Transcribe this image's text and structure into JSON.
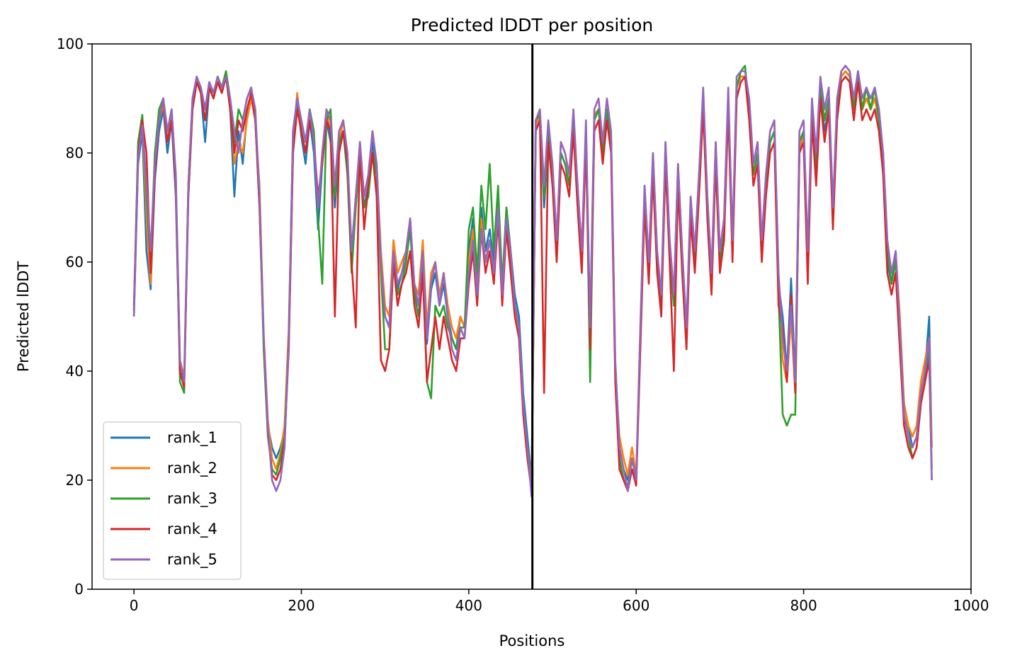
{
  "chart_data": {
    "type": "line",
    "title": "Predicted lDDT per position",
    "xlabel": "Positions",
    "ylabel": "Predicted lDDT",
    "xlim": [
      -50,
      1000
    ],
    "ylim": [
      0,
      100
    ],
    "xticks": [
      0,
      200,
      400,
      600,
      800,
      1000
    ],
    "yticks": [
      0,
      20,
      40,
      60,
      80,
      100
    ],
    "grid": false,
    "legend_position": "lower-left",
    "vline_x": 476,
    "x": [
      0,
      5,
      10,
      15,
      20,
      25,
      30,
      35,
      40,
      45,
      50,
      55,
      60,
      65,
      70,
      75,
      80,
      85,
      90,
      95,
      100,
      105,
      110,
      115,
      120,
      125,
      130,
      135,
      140,
      145,
      150,
      155,
      160,
      165,
      170,
      175,
      180,
      185,
      190,
      195,
      200,
      205,
      210,
      215,
      220,
      225,
      230,
      235,
      240,
      245,
      250,
      255,
      260,
      265,
      270,
      275,
      280,
      285,
      290,
      295,
      300,
      305,
      310,
      315,
      320,
      325,
      330,
      335,
      340,
      345,
      350,
      355,
      360,
      365,
      370,
      375,
      380,
      385,
      390,
      395,
      400,
      405,
      410,
      415,
      420,
      425,
      430,
      435,
      440,
      445,
      450,
      455,
      460,
      465,
      470,
      475,
      480,
      485,
      490,
      495,
      500,
      505,
      510,
      515,
      520,
      525,
      530,
      535,
      540,
      545,
      550,
      555,
      560,
      565,
      570,
      575,
      580,
      585,
      590,
      595,
      600,
      605,
      610,
      615,
      620,
      625,
      630,
      635,
      640,
      645,
      650,
      655,
      660,
      665,
      670,
      675,
      680,
      685,
      690,
      695,
      700,
      705,
      710,
      715,
      720,
      725,
      730,
      735,
      740,
      745,
      750,
      755,
      760,
      765,
      770,
      775,
      780,
      785,
      790,
      795,
      800,
      805,
      810,
      815,
      820,
      825,
      830,
      835,
      840,
      845,
      850,
      855,
      860,
      865,
      870,
      875,
      880,
      885,
      890,
      895,
      900,
      905,
      910,
      915,
      920,
      925,
      930,
      935,
      940,
      945,
      950,
      953
    ],
    "series": [
      {
        "name": "rank_1",
        "color": "#1f77b4",
        "values": [
          50,
          78,
          84,
          62,
          55,
          75,
          84,
          88,
          80,
          86,
          72,
          40,
          38,
          72,
          88,
          93,
          91,
          82,
          92,
          90,
          93,
          91,
          94,
          88,
          72,
          84,
          78,
          87,
          91,
          86,
          70,
          45,
          30,
          26,
          24,
          26,
          29,
          45,
          80,
          90,
          83,
          78,
          86,
          80,
          66,
          78,
          86,
          82,
          70,
          80,
          84,
          78,
          60,
          70,
          80,
          70,
          74,
          82,
          76,
          60,
          50,
          48,
          62,
          55,
          58,
          60,
          68,
          55,
          52,
          62,
          45,
          55,
          58,
          52,
          56,
          50,
          46,
          44,
          50,
          48,
          62,
          68,
          55,
          70,
          62,
          66,
          60,
          72,
          55,
          70,
          62,
          54,
          50,
          36,
          28,
          20,
          84,
          86,
          70,
          82,
          76,
          62,
          80,
          78,
          74,
          86,
          72,
          60,
          84,
          46,
          86,
          88,
          80,
          88,
          82,
          40,
          26,
          22,
          20,
          24,
          20,
          46,
          72,
          58,
          78,
          60,
          52,
          80,
          62,
          52,
          76,
          60,
          46,
          70,
          60,
          74,
          90,
          70,
          56,
          80,
          60,
          66,
          90,
          62,
          92,
          94,
          94,
          88,
          76,
          80,
          62,
          74,
          82,
          84,
          56,
          50,
          40,
          57,
          38,
          82,
          84,
          60,
          88,
          76,
          92,
          84,
          88,
          68,
          88,
          94,
          95,
          94,
          88,
          94,
          88,
          90,
          88,
          90,
          86,
          78,
          60,
          56,
          62,
          48,
          34,
          30,
          26,
          28,
          36,
          40,
          50,
          26
        ]
      },
      {
        "name": "rank_2",
        "color": "#ff7f0e",
        "values": [
          51,
          80,
          86,
          68,
          56,
          78,
          86,
          89,
          82,
          87,
          74,
          42,
          39,
          74,
          89,
          93,
          92,
          88,
          93,
          91,
          93,
          92,
          94,
          89,
          78,
          82,
          80,
          86,
          90,
          86,
          74,
          47,
          31,
          24,
          22,
          25,
          30,
          48,
          82,
          91,
          84,
          80,
          88,
          82,
          70,
          80,
          88,
          84,
          72,
          82,
          86,
          80,
          62,
          72,
          82,
          72,
          76,
          84,
          78,
          62,
          52,
          50,
          64,
          58,
          60,
          62,
          68,
          56,
          54,
          64,
          48,
          58,
          60,
          54,
          58,
          52,
          48,
          46,
          50,
          48,
          60,
          66,
          54,
          68,
          60,
          64,
          58,
          70,
          54,
          68,
          60,
          52,
          48,
          34,
          26,
          19,
          85,
          87,
          72,
          84,
          78,
          64,
          82,
          80,
          76,
          87,
          74,
          62,
          85,
          48,
          87,
          88,
          80,
          88,
          82,
          40,
          28,
          24,
          21,
          26,
          21,
          48,
          74,
          60,
          80,
          62,
          54,
          82,
          64,
          54,
          78,
          62,
          48,
          72,
          62,
          76,
          90,
          72,
          58,
          82,
          62,
          68,
          90,
          64,
          92,
          94,
          94,
          88,
          78,
          82,
          64,
          76,
          84,
          86,
          58,
          42,
          38,
          50,
          36,
          80,
          84,
          62,
          88,
          78,
          92,
          86,
          90,
          70,
          88,
          94,
          95,
          94,
          88,
          94,
          88,
          90,
          88,
          90,
          86,
          80,
          64,
          58,
          62,
          50,
          34,
          30,
          28,
          30,
          38,
          42,
          46,
          26
        ]
      },
      {
        "name": "rank_3",
        "color": "#2ca02c",
        "values": [
          51,
          82,
          87,
          72,
          60,
          80,
          88,
          90,
          84,
          88,
          76,
          38,
          36,
          74,
          90,
          94,
          92,
          88,
          93,
          91,
          94,
          92,
          95,
          90,
          82,
          88,
          86,
          90,
          92,
          86,
          72,
          44,
          28,
          22,
          21,
          24,
          28,
          46,
          84,
          90,
          86,
          82,
          88,
          84,
          68,
          56,
          86,
          88,
          72,
          82,
          84,
          76,
          58,
          70,
          80,
          70,
          72,
          80,
          76,
          58,
          44,
          44,
          60,
          54,
          56,
          60,
          66,
          54,
          50,
          60,
          38,
          35,
          52,
          50,
          52,
          48,
          46,
          44,
          48,
          48,
          66,
          70,
          58,
          74,
          66,
          78,
          62,
          74,
          56,
          70,
          62,
          52,
          48,
          34,
          26,
          18,
          86,
          87,
          72,
          84,
          76,
          62,
          80,
          78,
          74,
          86,
          72,
          60,
          84,
          38,
          86,
          88,
          80,
          88,
          82,
          40,
          24,
          20,
          19,
          24,
          20,
          46,
          72,
          58,
          78,
          60,
          52,
          80,
          62,
          52,
          76,
          60,
          46,
          70,
          60,
          74,
          90,
          70,
          56,
          80,
          60,
          66,
          90,
          62,
          92,
          95,
          96,
          88,
          76,
          80,
          62,
          74,
          82,
          84,
          54,
          32,
          30,
          32,
          32,
          82,
          84,
          60,
          88,
          78,
          92,
          86,
          90,
          68,
          88,
          95,
          96,
          95,
          88,
          95,
          88,
          92,
          88,
          92,
          86,
          78,
          62,
          56,
          60,
          46,
          32,
          28,
          24,
          26,
          34,
          38,
          44,
          20
        ]
      },
      {
        "name": "rank_4",
        "color": "#d62728",
        "values": [
          52,
          80,
          86,
          80,
          58,
          76,
          86,
          90,
          82,
          86,
          74,
          40,
          37,
          72,
          88,
          93,
          91,
          86,
          92,
          90,
          93,
          91,
          94,
          88,
          80,
          86,
          84,
          88,
          91,
          86,
          70,
          46,
          29,
          21,
          20,
          22,
          27,
          44,
          80,
          88,
          84,
          80,
          86,
          82,
          72,
          78,
          86,
          84,
          50,
          80,
          84,
          78,
          60,
          48,
          80,
          66,
          74,
          80,
          72,
          42,
          40,
          44,
          60,
          52,
          56,
          58,
          62,
          52,
          48,
          58,
          38,
          44,
          50,
          44,
          50,
          46,
          42,
          40,
          46,
          46,
          56,
          62,
          52,
          66,
          58,
          62,
          56,
          68,
          52,
          66,
          58,
          50,
          46,
          32,
          24,
          18,
          84,
          86,
          36,
          82,
          74,
          60,
          78,
          76,
          72,
          84,
          70,
          58,
          82,
          44,
          84,
          86,
          78,
          86,
          80,
          38,
          22,
          20,
          18,
          22,
          19,
          44,
          70,
          56,
          76,
          58,
          50,
          78,
          60,
          40,
          74,
          58,
          44,
          68,
          58,
          72,
          88,
          68,
          54,
          78,
          58,
          64,
          88,
          60,
          90,
          93,
          94,
          86,
          74,
          78,
          60,
          72,
          80,
          82,
          52,
          48,
          38,
          54,
          36,
          80,
          82,
          56,
          86,
          74,
          90,
          82,
          88,
          66,
          86,
          93,
          94,
          93,
          86,
          93,
          86,
          88,
          86,
          88,
          84,
          76,
          58,
          54,
          58,
          44,
          30,
          26,
          24,
          26,
          34,
          38,
          42,
          22
        ]
      },
      {
        "name": "rank_5",
        "color": "#9467bd",
        "values": [
          50,
          79,
          85,
          74,
          62,
          78,
          86,
          90,
          84,
          88,
          76,
          42,
          38,
          74,
          90,
          94,
          92,
          88,
          93,
          91,
          94,
          92,
          94,
          90,
          84,
          80,
          86,
          90,
          92,
          88,
          72,
          46,
          30,
          20,
          18,
          20,
          26,
          46,
          84,
          90,
          86,
          82,
          88,
          82,
          70,
          80,
          88,
          86,
          74,
          84,
          86,
          80,
          62,
          72,
          82,
          72,
          76,
          84,
          78,
          60,
          50,
          48,
          62,
          56,
          58,
          62,
          68,
          56,
          52,
          62,
          46,
          56,
          60,
          52,
          58,
          50,
          44,
          42,
          48,
          46,
          58,
          64,
          54,
          66,
          60,
          64,
          58,
          70,
          54,
          68,
          62,
          52,
          48,
          34,
          26,
          17,
          86,
          88,
          74,
          86,
          78,
          64,
          82,
          80,
          76,
          88,
          74,
          62,
          86,
          48,
          88,
          90,
          82,
          90,
          84,
          42,
          26,
          22,
          18,
          24,
          20,
          48,
          74,
          60,
          80,
          62,
          54,
          82,
          64,
          54,
          78,
          62,
          48,
          72,
          62,
          76,
          92,
          72,
          58,
          82,
          62,
          68,
          92,
          64,
          94,
          95,
          95,
          90,
          78,
          82,
          64,
          76,
          84,
          86,
          58,
          46,
          40,
          52,
          38,
          84,
          86,
          62,
          90,
          80,
          94,
          88,
          92,
          70,
          90,
          95,
          96,
          95,
          90,
          95,
          90,
          92,
          90,
          92,
          88,
          80,
          64,
          58,
          62,
          48,
          32,
          28,
          26,
          28,
          36,
          40,
          46,
          20
        ]
      }
    ]
  }
}
